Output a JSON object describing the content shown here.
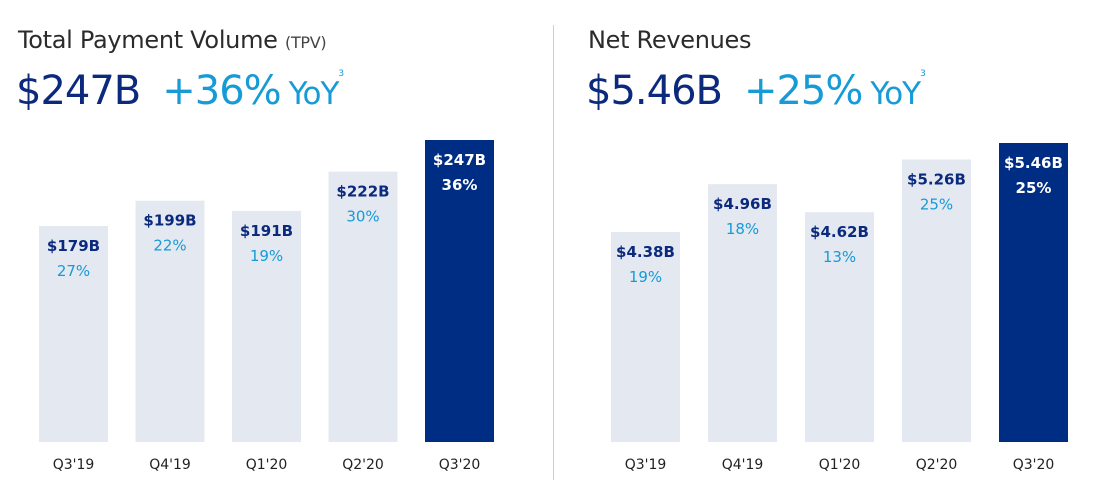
{
  "chart_data": [
    {
      "type": "bar",
      "title": "Total Payment Volume",
      "title_suffix": "(TPV)",
      "headline_value": "$247B",
      "headline_growth": "+36%",
      "headline_unit": "YoY",
      "footnote": "3",
      "categories": [
        "Q3'19",
        "Q4'19",
        "Q1'20",
        "Q2'20",
        "Q3'20"
      ],
      "values": [
        179,
        199,
        191,
        222,
        247
      ],
      "value_labels": [
        "$179B",
        "$199B",
        "$191B",
        "$222B",
        "$247B"
      ],
      "growth_labels": [
        "27%",
        "22%",
        "19%",
        "30%",
        "36%"
      ],
      "unit": "B USD",
      "highlight_index": 4
    },
    {
      "type": "bar",
      "title": "Net Revenues",
      "headline_value": "$5.46B",
      "headline_growth": "+25%",
      "headline_unit": "YoY",
      "footnote": "3",
      "categories": [
        "Q3'19",
        "Q4'19",
        "Q1'20",
        "Q2'20",
        "Q3'20"
      ],
      "values": [
        4.38,
        4.96,
        4.62,
        5.26,
        5.46
      ],
      "value_labels": [
        "$4.38B",
        "$4.96B",
        "$4.62B",
        "$5.26B",
        "$5.46B"
      ],
      "growth_labels": [
        "19%",
        "18%",
        "13%",
        "25%",
        "25%"
      ],
      "unit": "B USD",
      "highlight_index": 4
    }
  ],
  "colors": {
    "bar": "#e4e8f0",
    "highlight": "#002d84",
    "value_text": "#0b2a7e",
    "growth_text": "#169bd7",
    "axis_text": "#222222"
  }
}
